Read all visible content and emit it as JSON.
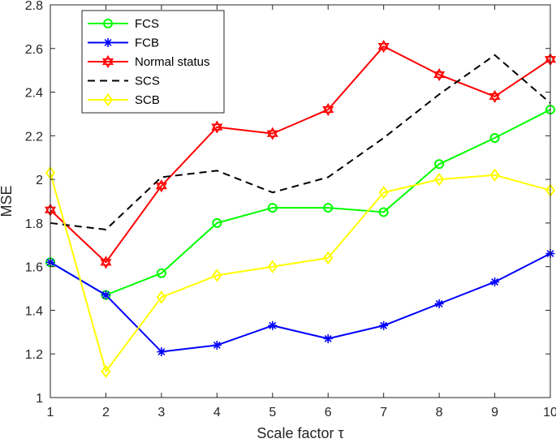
{
  "chart_data": {
    "type": "line",
    "title": "",
    "xlabel": "Scale factor τ",
    "ylabel": "MSE",
    "x": [
      1,
      2,
      3,
      4,
      5,
      6,
      7,
      8,
      9,
      10
    ],
    "xlim": [
      1,
      10
    ],
    "ylim": [
      1,
      2.8
    ],
    "xticks": [
      "1",
      "2",
      "3",
      "4",
      "5",
      "6",
      "7",
      "8",
      "9",
      "10"
    ],
    "yticks": [
      "1",
      "1.2",
      "1.4",
      "1.6",
      "1.8",
      "2",
      "2.2",
      "2.4",
      "2.6",
      "2.8"
    ],
    "grid": false,
    "legend_position": "top-left",
    "series": [
      {
        "name": "FCS",
        "color": "#00ff00",
        "marker": "circle",
        "line": "solid",
        "values": [
          1.62,
          1.47,
          1.57,
          1.8,
          1.87,
          1.87,
          1.85,
          2.07,
          2.19,
          2.32
        ]
      },
      {
        "name": "FCB",
        "color": "#0000ff",
        "marker": "asterisk",
        "line": "solid",
        "values": [
          1.62,
          1.47,
          1.21,
          1.24,
          1.33,
          1.27,
          1.33,
          1.43,
          1.53,
          1.66
        ]
      },
      {
        "name": "Normal status",
        "color": "#ff0000",
        "marker": "hexagram",
        "line": "solid",
        "values": [
          1.86,
          1.62,
          1.97,
          2.24,
          2.21,
          2.32,
          2.61,
          2.48,
          2.38,
          2.55
        ]
      },
      {
        "name": "SCS",
        "color": "#000000",
        "marker": "none",
        "line": "dashed",
        "values": [
          1.8,
          1.77,
          2.01,
          2.04,
          1.94,
          2.01,
          2.19,
          2.39,
          2.57,
          2.35
        ]
      },
      {
        "name": "SCB",
        "color": "#ffff00",
        "marker": "diamond",
        "line": "solid",
        "values": [
          2.03,
          1.12,
          1.46,
          1.56,
          1.6,
          1.64,
          1.94,
          2.0,
          2.02,
          1.95
        ]
      }
    ]
  }
}
